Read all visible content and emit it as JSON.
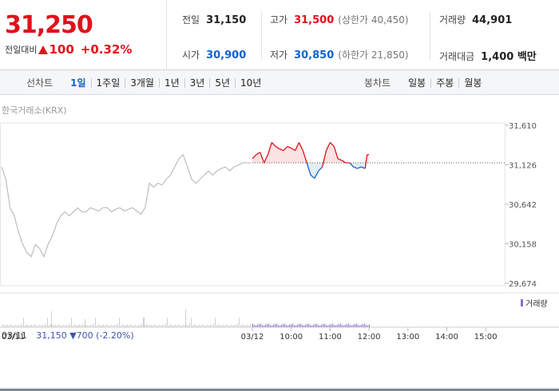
{
  "header": {
    "price": "31,250",
    "change_label": "전일대비",
    "change_value": "100",
    "change_pct": "+0.32%",
    "stats": {
      "prev_close_label": "전일",
      "prev_close": "31,150",
      "open_label": "시가",
      "open": "30,900",
      "high_label": "고가",
      "high": "31,500",
      "upper_limit_label": "(상한가 40,450)",
      "low_label": "저가",
      "low": "30,850",
      "lower_limit_label": "(하한가 21,850)",
      "volume_label": "거래량",
      "volume": "44,901",
      "amount_label": "거래대금",
      "amount": "1,400 백만"
    }
  },
  "toolbar": {
    "line_chart_title": "선차트",
    "line_periods": [
      "1일",
      "1주일",
      "3개월",
      "1년",
      "3년",
      "5년",
      "10년"
    ],
    "candle_chart_title": "봉차트",
    "candle_periods": [
      "일봉",
      "주봉",
      "월봉"
    ]
  },
  "exchange_label": "한국거래소(KRX)",
  "chart_data": {
    "type": "line",
    "y_ticks": [
      "31,610",
      "31,126",
      "30,642",
      "30,158",
      "29,674"
    ],
    "y_tick_values": [
      31610,
      31126,
      30642,
      30158,
      29674
    ],
    "ylim": [
      29674,
      31610
    ],
    "baseline": 31150,
    "x_ticks": [
      "03/12",
      "10:00",
      "11:00",
      "12:00",
      "13:00",
      "14:00",
      "15:00"
    ],
    "x_tick_hours": [
      9,
      10,
      11,
      12,
      13,
      14,
      15
    ],
    "prev_day_label": "03/11",
    "prev_day_values": [
      31100,
      30950,
      30600,
      30500,
      30300,
      30150,
      30050,
      30000,
      30150,
      30100,
      30000,
      30150,
      30250,
      30400,
      30500,
      30550,
      30500,
      30550,
      30600,
      30550,
      30550,
      30600,
      30580,
      30560,
      30600,
      30600,
      30550,
      30580,
      30600,
      30560,
      30580,
      30600,
      30560,
      30520,
      30600,
      30900,
      30850,
      30900,
      30880,
      30950,
      31000,
      31100,
      31200,
      31250,
      31100,
      30950,
      30900,
      30950,
      31000,
      31050,
      31000,
      31050,
      31080,
      31100,
      31050,
      31100,
      31120,
      31150,
      31150,
      31150
    ],
    "today_times": [
      9.0,
      9.1,
      9.2,
      9.3,
      9.4,
      9.5,
      9.6,
      9.7,
      9.8,
      9.9,
      10.0,
      10.1,
      10.2,
      10.3,
      10.4,
      10.5,
      10.6,
      10.7,
      10.8,
      10.9,
      11.0,
      11.1,
      11.2,
      11.3,
      11.4,
      11.5,
      11.6,
      11.7,
      11.8,
      11.9,
      11.95,
      12.0
    ],
    "today_values": [
      31200,
      31250,
      31280,
      31150,
      31250,
      31400,
      31350,
      31320,
      31300,
      31350,
      31330,
      31300,
      31400,
      31300,
      31150,
      31000,
      30960,
      31050,
      31100,
      31300,
      31400,
      31350,
      31200,
      31180,
      31150,
      31150,
      31100,
      31080,
      31100,
      31080,
      31250,
      31250
    ]
  },
  "volume_legend": "거래량",
  "prev_info": {
    "date": "03/11",
    "price": "31,150",
    "change": "▼700",
    "pct": "(-2.20%)"
  },
  "colors": {
    "up": "#e0121b",
    "down": "#1462c8",
    "prev_line": "#bdbdbd",
    "volume_today": "#8e6bc8"
  }
}
